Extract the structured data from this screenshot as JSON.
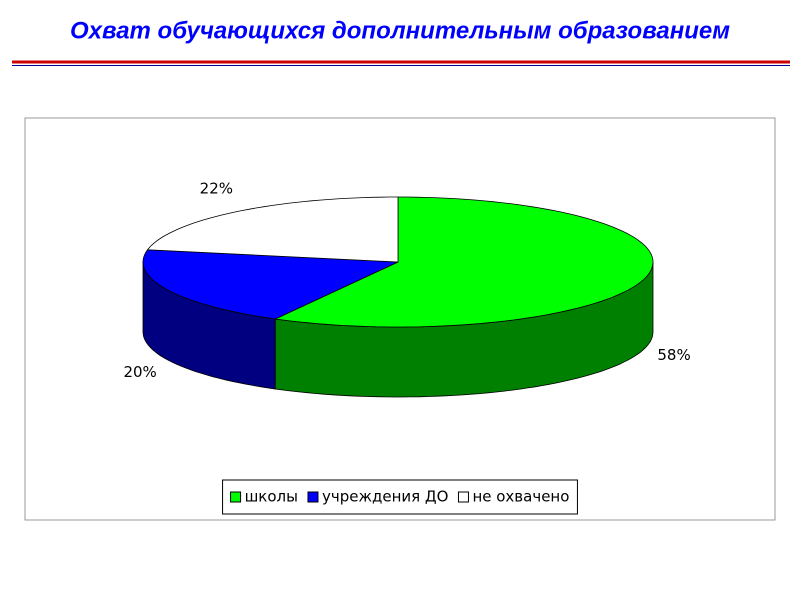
{
  "chart_data": {
    "type": "pie",
    "title": "Охват обучающихся дополнительным образованием",
    "categories": [
      "школы",
      "учреждения ДО",
      "не охвачено"
    ],
    "values": [
      58,
      20,
      22
    ],
    "value_labels": [
      "58%",
      "20%",
      "22%"
    ],
    "colors": [
      "#00ff00",
      "#0000ff",
      "#ffffff"
    ],
    "legend": "bottom"
  }
}
